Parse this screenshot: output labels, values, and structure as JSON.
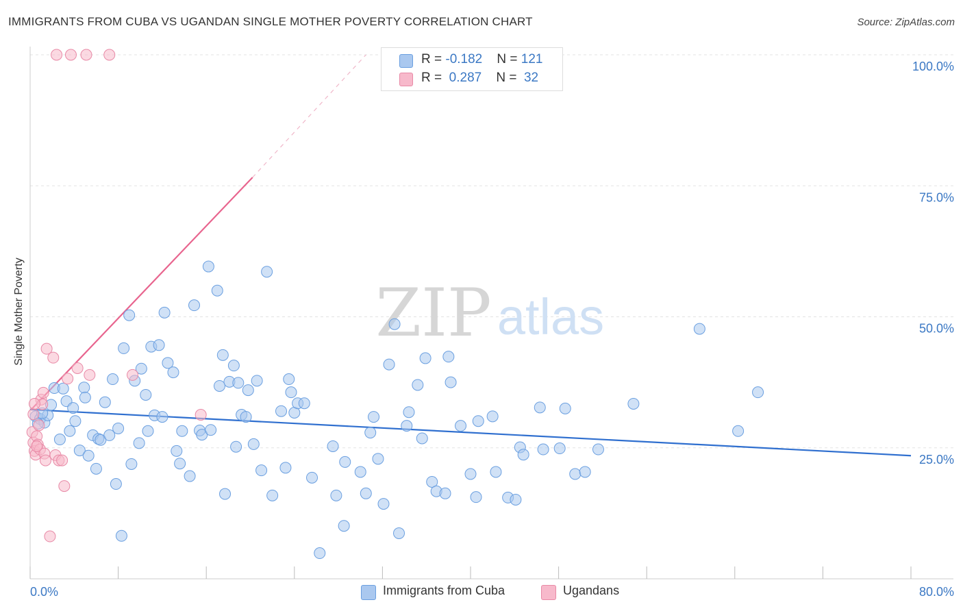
{
  "title": "IMMIGRANTS FROM CUBA VS UGANDAN SINGLE MOTHER POVERTY CORRELATION CHART",
  "source": "Source: ZipAtlas.com",
  "watermark": {
    "zip": "ZIP",
    "atlas": "atlas"
  },
  "colors": {
    "cuba_fill": "#aac8ef",
    "cuba_stroke": "#6a9fe0",
    "cuba_line": "#2f6fcf",
    "uganda_fill": "#f7b9cb",
    "uganda_stroke": "#e889a6",
    "uganda_line": "#e8648e",
    "tick_label": "#3b78c4",
    "grid": "#e3e3e3"
  },
  "legend": {
    "rows": [
      {
        "r_label": "R = ",
        "r_value": "-0.182",
        "n_label": "N = ",
        "n_value": "121"
      },
      {
        "r_label": "R = ",
        "r_value": " 0.287",
        "n_label": "N = ",
        "n_value": " 32"
      }
    ]
  },
  "bottom_legend": [
    "Immigrants from Cuba",
    "Ugandans"
  ],
  "chart_data": {
    "type": "scatter",
    "xlabel": "",
    "ylabel": "Single Mother Poverty",
    "xlim": [
      0,
      80
    ],
    "ylim": [
      0,
      100
    ],
    "x_tick_labels": [
      {
        "value": 0,
        "label": "0.0%"
      },
      {
        "value": 80,
        "label": "80.0%"
      }
    ],
    "y_tick_labels": [
      {
        "value": 25,
        "label": "25.0%"
      },
      {
        "value": 50,
        "label": "50.0%"
      },
      {
        "value": 75,
        "label": "75.0%"
      },
      {
        "value": 100,
        "label": "100.0%"
      }
    ],
    "x_minor_ticks": [
      0,
      8,
      16,
      24,
      32,
      40,
      48,
      56,
      64,
      72,
      80
    ],
    "series": [
      {
        "name": "Immigrants from Cuba",
        "R": -0.182,
        "N": 121,
        "trend": {
          "x": [
            0,
            80
          ],
          "y": [
            32.3,
            23.5
          ],
          "style": "solid"
        },
        "points": [
          [
            0.5,
            31
          ],
          [
            0.9,
            30.5
          ],
          [
            1.3,
            29.8
          ],
          [
            1.6,
            31.2
          ],
          [
            1.9,
            33.2
          ],
          [
            2.2,
            36.4
          ],
          [
            2.7,
            26.6
          ],
          [
            3.0,
            36.3
          ],
          [
            3.3,
            33.9
          ],
          [
            3.6,
            28.2
          ],
          [
            3.9,
            32.6
          ],
          [
            4.1,
            30.1
          ],
          [
            4.5,
            24.5
          ],
          [
            4.9,
            36.5
          ],
          [
            5.0,
            34.6
          ],
          [
            5.3,
            23.5
          ],
          [
            5.7,
            27.4
          ],
          [
            6.0,
            21.0
          ],
          [
            6.2,
            26.7
          ],
          [
            6.4,
            26.5
          ],
          [
            6.8,
            33.7
          ],
          [
            7.2,
            27.4
          ],
          [
            7.5,
            38.1
          ],
          [
            7.8,
            18.1
          ],
          [
            8.0,
            28.7
          ],
          [
            8.3,
            8.2
          ],
          [
            8.5,
            44.0
          ],
          [
            9.0,
            50.3
          ],
          [
            9.2,
            21.9
          ],
          [
            9.5,
            37.8
          ],
          [
            9.9,
            25.9
          ],
          [
            10.1,
            40.1
          ],
          [
            10.5,
            35.1
          ],
          [
            10.7,
            28.2
          ],
          [
            11.0,
            44.3
          ],
          [
            11.3,
            31.2
          ],
          [
            11.7,
            44.6
          ],
          [
            12.0,
            30.9
          ],
          [
            12.2,
            50.8
          ],
          [
            12.5,
            41.2
          ],
          [
            13.0,
            39.4
          ],
          [
            13.3,
            24.4
          ],
          [
            13.6,
            22.0
          ],
          [
            13.8,
            28.2
          ],
          [
            14.5,
            19.6
          ],
          [
            14.9,
            52.2
          ],
          [
            15.4,
            28.3
          ],
          [
            15.6,
            27.5
          ],
          [
            16.2,
            59.6
          ],
          [
            16.4,
            28.4
          ],
          [
            17.0,
            55.0
          ],
          [
            17.2,
            36.8
          ],
          [
            17.5,
            42.7
          ],
          [
            17.7,
            16.2
          ],
          [
            18.1,
            37.6
          ],
          [
            18.5,
            40.7
          ],
          [
            18.7,
            25.2
          ],
          [
            18.9,
            37.4
          ],
          [
            19.2,
            31.3
          ],
          [
            19.6,
            30.9
          ],
          [
            19.8,
            36.0
          ],
          [
            20.3,
            25.7
          ],
          [
            20.6,
            37.8
          ],
          [
            21.0,
            20.7
          ],
          [
            21.5,
            58.6
          ],
          [
            22.0,
            15.9
          ],
          [
            22.8,
            32.0
          ],
          [
            23.2,
            21.2
          ],
          [
            23.5,
            38.1
          ],
          [
            23.7,
            35.6
          ],
          [
            24.0,
            31.7
          ],
          [
            24.3,
            33.5
          ],
          [
            24.9,
            33.5
          ],
          [
            25.6,
            19.3
          ],
          [
            26.3,
            4.9
          ],
          [
            27.5,
            25.3
          ],
          [
            27.8,
            15.9
          ],
          [
            28.5,
            10.1
          ],
          [
            28.6,
            22.3
          ],
          [
            30.0,
            20.4
          ],
          [
            30.5,
            16.3
          ],
          [
            30.9,
            27.9
          ],
          [
            31.2,
            30.9
          ],
          [
            31.6,
            22.9
          ],
          [
            32.1,
            14.3
          ],
          [
            32.6,
            40.9
          ],
          [
            33.1,
            48.6
          ],
          [
            33.5,
            8.7
          ],
          [
            34.2,
            29.2
          ],
          [
            34.4,
            31.8
          ],
          [
            35.2,
            37.0
          ],
          [
            35.6,
            26.8
          ],
          [
            35.9,
            42.1
          ],
          [
            36.5,
            18.5
          ],
          [
            36.9,
            16.7
          ],
          [
            37.7,
            16.3
          ],
          [
            38.0,
            42.4
          ],
          [
            38.2,
            37.5
          ],
          [
            39.1,
            29.2
          ],
          [
            40.0,
            20.0
          ],
          [
            40.5,
            15.6
          ],
          [
            40.7,
            30.1
          ],
          [
            42.0,
            31.0
          ],
          [
            42.3,
            20.4
          ],
          [
            43.4,
            15.5
          ],
          [
            44.1,
            15.1
          ],
          [
            44.5,
            25.1
          ],
          [
            44.8,
            23.7
          ],
          [
            46.3,
            32.7
          ],
          [
            46.6,
            24.7
          ],
          [
            48.1,
            24.9
          ],
          [
            48.6,
            32.5
          ],
          [
            49.5,
            20.0
          ],
          [
            50.4,
            20.4
          ],
          [
            51.6,
            24.7
          ],
          [
            54.8,
            33.4
          ],
          [
            60.8,
            47.7
          ],
          [
            64.3,
            28.2
          ],
          [
            66.1,
            35.6
          ],
          [
            0.7,
            29.6
          ],
          [
            1.1,
            31.6
          ]
        ]
      },
      {
        "name": "Ugandans",
        "R": 0.287,
        "N": 32,
        "trend": {
          "x": [
            0.1,
            20.2
          ],
          "y": [
            32.3,
            76.6
          ],
          "style": "solid",
          "extension": {
            "x": [
              20.2,
              30.5
            ],
            "y": [
              76.6,
              100
            ]
          }
        },
        "points": [
          [
            2.4,
            100
          ],
          [
            3.7,
            100
          ],
          [
            5.1,
            100
          ],
          [
            7.2,
            100
          ],
          [
            0.2,
            28.0
          ],
          [
            0.3,
            26.0
          ],
          [
            0.4,
            24.4
          ],
          [
            0.5,
            23.7
          ],
          [
            0.6,
            27.2
          ],
          [
            0.7,
            25.6
          ],
          [
            0.8,
            29.3
          ],
          [
            0.9,
            24.7
          ],
          [
            1.0,
            34.2
          ],
          [
            1.1,
            33.3
          ],
          [
            1.2,
            35.5
          ],
          [
            1.3,
            23.9
          ],
          [
            1.4,
            22.6
          ],
          [
            1.5,
            43.9
          ],
          [
            2.1,
            42.2
          ],
          [
            2.3,
            23.6
          ],
          [
            2.6,
            22.6
          ],
          [
            2.9,
            22.6
          ],
          [
            3.1,
            17.7
          ],
          [
            3.4,
            38.2
          ],
          [
            4.3,
            40.2
          ],
          [
            5.4,
            38.9
          ],
          [
            9.3,
            38.9
          ],
          [
            15.5,
            31.3
          ],
          [
            0.3,
            31.4
          ],
          [
            0.6,
            25.3
          ],
          [
            1.8,
            8.1
          ],
          [
            0.4,
            33.4
          ]
        ]
      }
    ]
  }
}
